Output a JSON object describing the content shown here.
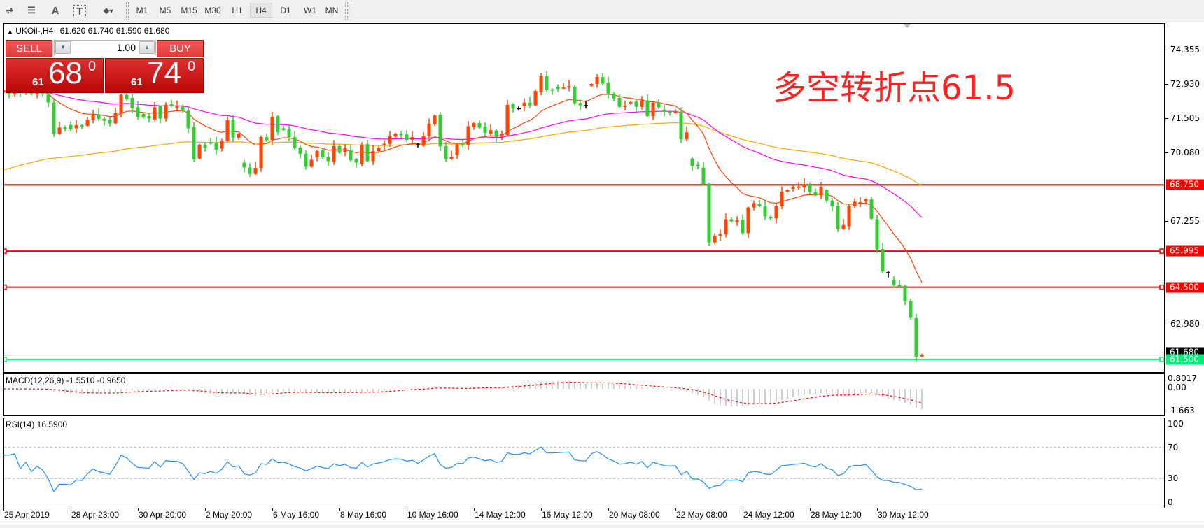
{
  "toolbar": {
    "tools": [
      {
        "icon": "indicators-icon",
        "glyph": "⩫"
      },
      {
        "icon": "fibonacci-icon",
        "glyph": "☰"
      },
      {
        "icon": "text-icon",
        "glyph": "A"
      },
      {
        "icon": "text-label-icon",
        "glyph": "T"
      },
      {
        "icon": "arrows-icon",
        "glyph": "⬥▾"
      }
    ],
    "timeframes": [
      "M1",
      "M5",
      "M15",
      "M30",
      "H1",
      "H4",
      "D1",
      "W1",
      "MN"
    ],
    "active_timeframe": "H4"
  },
  "chart": {
    "symbol_line": "UKOil-,H4",
    "ohlc_line": "61.620 61.740 61.590 61.680"
  },
  "trade_panel": {
    "sell_label": "SELL",
    "buy_label": "BUY",
    "volume": "1.00",
    "sell": {
      "prefix": "61",
      "main": "68",
      "sup": "0"
    },
    "buy": {
      "prefix": "61",
      "main": "74",
      "sup": "0"
    }
  },
  "annotation": "多空转折点61.5",
  "chart_data": {
    "type": "candlestick",
    "symbol": "UKOil-",
    "timeframe": "H4",
    "bar_format": "[open, close]",
    "last_bar": {
      "open": 61.62,
      "high": 61.74,
      "low": 61.59,
      "close": 61.68
    },
    "bars": [
      [
        72.6,
        72.7
      ],
      [
        72.7,
        72.5
      ],
      [
        72.5,
        72.8
      ],
      [
        72.8,
        72.6
      ],
      [
        72.6,
        72.7
      ],
      [
        72.7,
        72.5
      ],
      [
        72.5,
        72.6
      ],
      [
        72.6,
        72.5
      ],
      [
        72.5,
        72.17
      ],
      [
        72.17,
        70.86
      ],
      [
        70.86,
        71.13
      ],
      [
        71.14,
        71.13
      ],
      [
        71.24,
        71.05
      ],
      [
        71.1,
        71.23
      ],
      [
        71.23,
        71.19
      ],
      [
        71.2,
        71.46
      ],
      [
        71.46,
        71.68
      ],
      [
        71.68,
        71.49
      ],
      [
        71.49,
        71.41
      ],
      [
        71.43,
        71.3
      ],
      [
        71.3,
        71.73
      ],
      [
        71.7,
        72.49
      ],
      [
        72.49,
        72.31
      ],
      [
        72.36,
        71.92
      ],
      [
        71.97,
        71.57
      ],
      [
        71.7,
        71.54
      ],
      [
        71.6,
        71.5
      ],
      [
        71.46,
        71.97
      ],
      [
        72.02,
        71.5
      ],
      [
        71.5,
        72.07
      ],
      [
        72.1,
        72.02
      ],
      [
        71.98,
        72.01
      ],
      [
        72.0,
        71.83
      ],
      [
        71.83,
        71.1
      ],
      [
        71.15,
        69.81
      ],
      [
        69.84,
        70.42
      ],
      [
        70.42,
        70.28
      ],
      [
        70.52,
        70.49
      ],
      [
        70.5,
        70.2
      ],
      [
        70.25,
        70.59
      ],
      [
        70.57,
        71.44
      ],
      [
        71.44,
        70.71
      ],
      [
        70.7,
        70.86
      ],
      [
        69.67,
        69.47
      ],
      [
        69.47,
        69.2
      ],
      [
        69.2,
        69.45
      ],
      [
        69.45,
        70.73
      ],
      [
        70.73,
        70.6
      ],
      [
        70.62,
        71.57
      ],
      [
        71.6,
        70.93
      ],
      [
        71.1,
        71.02
      ],
      [
        71.05,
        70.73
      ],
      [
        70.73,
        70.28
      ],
      [
        70.3,
        70.04
      ],
      [
        70.04,
        69.5
      ],
      [
        69.5,
        69.79
      ],
      [
        69.89,
        70.15
      ],
      [
        70.18,
        69.89
      ],
      [
        69.92,
        69.73
      ],
      [
        69.7,
        70.36
      ],
      [
        70.36,
        70.08
      ],
      [
        70.1,
        70.27
      ],
      [
        70.18,
        69.77
      ],
      [
        69.83,
        69.67
      ],
      [
        69.63,
        70.41
      ],
      [
        70.44,
        69.73
      ],
      [
        69.73,
        70.15
      ],
      [
        70.15,
        70.29
      ],
      [
        70.4,
        70.46
      ],
      [
        70.45,
        70.76
      ],
      [
        70.75,
        70.87
      ],
      [
        70.87,
        70.84
      ],
      [
        70.84,
        70.62
      ],
      [
        70.62,
        70.73
      ],
      [
        70.41,
        70.41
      ],
      [
        70.37,
        70.79
      ],
      [
        70.77,
        71.29
      ],
      [
        71.27,
        71.63
      ],
      [
        71.66,
        70.35
      ],
      [
        70.35,
        69.82
      ],
      [
        69.82,
        69.92
      ],
      [
        69.99,
        70.42
      ],
      [
        70.47,
        70.4
      ],
      [
        70.4,
        71.18
      ],
      [
        71.15,
        71.31
      ],
      [
        71.31,
        71.12
      ],
      [
        71.17,
        70.91
      ],
      [
        70.86,
        71.02
      ],
      [
        71.0,
        70.73
      ],
      [
        70.73,
        70.86
      ],
      [
        70.81,
        72.07
      ],
      [
        72.1,
        71.91
      ],
      [
        71.91,
        71.91
      ],
      [
        72.01,
        72.16
      ],
      [
        72.16,
        72.05
      ],
      [
        72.05,
        72.65
      ],
      [
        72.62,
        73.26
      ],
      [
        73.26,
        72.69
      ],
      [
        72.72,
        72.69
      ],
      [
        72.82,
        72.73
      ],
      [
        72.79,
        72.8
      ],
      [
        72.79,
        72.85
      ],
      [
        72.82,
        72.14
      ],
      [
        72.15,
        72.05
      ],
      [
        72.04,
        72.04
      ],
      [
        72.86,
        72.94
      ],
      [
        72.94,
        73.23
      ],
      [
        73.23,
        72.96
      ],
      [
        73.0,
        72.54
      ],
      [
        72.54,
        72.34
      ],
      [
        72.36,
        71.99
      ],
      [
        72.0,
        72.04
      ],
      [
        72.15,
        72.19
      ],
      [
        72.21,
        71.99
      ],
      [
        71.99,
        72.26
      ],
      [
        72.26,
        71.6
      ],
      [
        71.6,
        72.16
      ],
      [
        72.16,
        71.97
      ],
      [
        71.87,
        71.8
      ],
      [
        71.8,
        71.75
      ],
      [
        71.75,
        71.78
      ],
      [
        71.78,
        70.64
      ],
      [
        70.64,
        70.93
      ],
      [
        69.84,
        69.53
      ],
      [
        69.58,
        69.52
      ],
      [
        69.47,
        68.78
      ],
      [
        68.8,
        66.36
      ],
      [
        66.36,
        66.63
      ],
      [
        66.63,
        66.71
      ],
      [
        66.69,
        67.32
      ],
      [
        67.32,
        67.23
      ],
      [
        67.21,
        67.3
      ],
      [
        67.3,
        66.74
      ],
      [
        66.74,
        67.81
      ],
      [
        67.81,
        67.99
      ],
      [
        67.94,
        67.86
      ],
      [
        67.85,
        67.44
      ],
      [
        67.42,
        67.35
      ],
      [
        67.35,
        67.86
      ],
      [
        67.86,
        68.47
      ],
      [
        68.47,
        68.53
      ],
      [
        68.63,
        68.64
      ],
      [
        68.63,
        68.68
      ],
      [
        68.63,
        68.78
      ],
      [
        68.78,
        68.46
      ],
      [
        68.46,
        68.31
      ],
      [
        68.31,
        68.66
      ],
      [
        68.53,
        68.1
      ],
      [
        68.1,
        67.86
      ],
      [
        67.86,
        66.91
      ],
      [
        66.91,
        67.08
      ],
      [
        67.03,
        67.86
      ],
      [
        67.86,
        68.05
      ],
      [
        68.02,
        68.03
      ],
      [
        68.05,
        68.15
      ],
      [
        68.15,
        67.34
      ],
      [
        67.32,
        66.08
      ],
      [
        66.08,
        65.15
      ],
      [
        65.1,
        65.1
      ],
      [
        64.81,
        64.59
      ],
      [
        64.59,
        64.54
      ],
      [
        64.56,
        63.92
      ],
      [
        63.92,
        63.23
      ],
      [
        63.21,
        61.61
      ],
      [
        61.62,
        61.68
      ]
    ],
    "price_ticks": [
      "74.355",
      "72.930",
      "71.505",
      "70.080",
      "67.255",
      "62.980"
    ],
    "horizontal_lines": [
      {
        "price": "68.750",
        "color": "#ff0000"
      },
      {
        "price": "65.995",
        "color": "#ff0000"
      },
      {
        "price": "64.500",
        "color": "#ff0000"
      },
      {
        "price": "61.500",
        "color": "#00ee77"
      }
    ],
    "current_price": "61.680",
    "time_labels": [
      "25 Apr 2019",
      "28 Apr 23:00",
      "30 Apr 20:00",
      "2 May 20:00",
      "6 May 16:00",
      "8 May 16:00",
      "10 May 16:00",
      "14 May 12:00",
      "16 May 12:00",
      "20 May 08:00",
      "22 May 08:00",
      "24 May 12:00",
      "28 May 12:00",
      "30 May 12:00"
    ],
    "colors": {
      "bull": "#ff4500",
      "bear": "#32cd32",
      "ma_fast": "#ff4500",
      "ma_mid": "#ff00ff",
      "ma_slow": "#ffa500",
      "macd_hist": "#c0c0c0",
      "macd_signal": "#ff0000",
      "rsi": "#1e90ff"
    },
    "macd": {
      "label": "MACD(12,26,9) -1.5510 -0.9650",
      "ticks": [
        "0.8017",
        "0.00",
        "-1.663"
      ]
    },
    "rsi": {
      "label": "RSI(14) 16.5900",
      "ticks": [
        "100",
        "70",
        "30",
        "0"
      ],
      "levels": [
        70,
        30
      ]
    }
  }
}
